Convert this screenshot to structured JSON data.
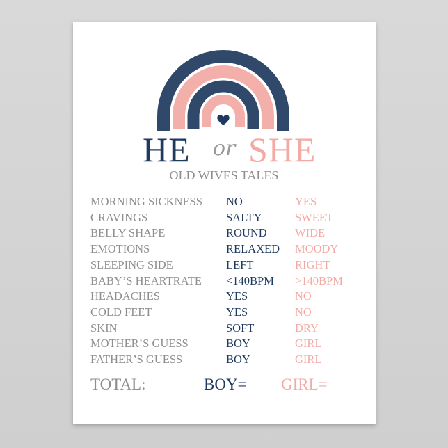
{
  "colors": {
    "navy": "#1f3a5f",
    "pink": "#f3aaa4",
    "gray": "#8e8e8e"
  },
  "header": {
    "he": "HE",
    "or": "or",
    "she": "SHE",
    "subtitle": "OLD WIVES TALES"
  },
  "rows": [
    {
      "label": "MORNING SICKNESS",
      "boy": "NO",
      "girl": "YES"
    },
    {
      "label": "CRAVINGS",
      "boy": "SALTY",
      "girl": "SWEET"
    },
    {
      "label": "BELLY SHAPE",
      "boy": "ROUND",
      "girl": "WIDE"
    },
    {
      "label": "EMOTIONS",
      "boy": "RELAXED",
      "girl": "MOODY"
    },
    {
      "label": "SLEEPING SIDE",
      "boy": "LEFT",
      "girl": "RIGHT"
    },
    {
      "label": "BABY’S HEARTRATE",
      "boy": "<140BPM",
      "girl": ">140BPM"
    },
    {
      "label": "HEADACHES",
      "boy": "YES",
      "girl": "NO"
    },
    {
      "label": "COLD FEET",
      "boy": "YES",
      "girl": "NO"
    },
    {
      "label": "SKIN",
      "boy": "SOFT",
      "girl": "DRY"
    },
    {
      "label": "MOTHER’S GUESS",
      "boy": "BOY",
      "girl": "GIRL"
    },
    {
      "label": "FATHER’S GUESS",
      "boy": "BOY",
      "girl": "GIRL"
    }
  ],
  "total": {
    "label": "TOTAL:",
    "boy": "BOY=",
    "girl": "GIRL="
  }
}
